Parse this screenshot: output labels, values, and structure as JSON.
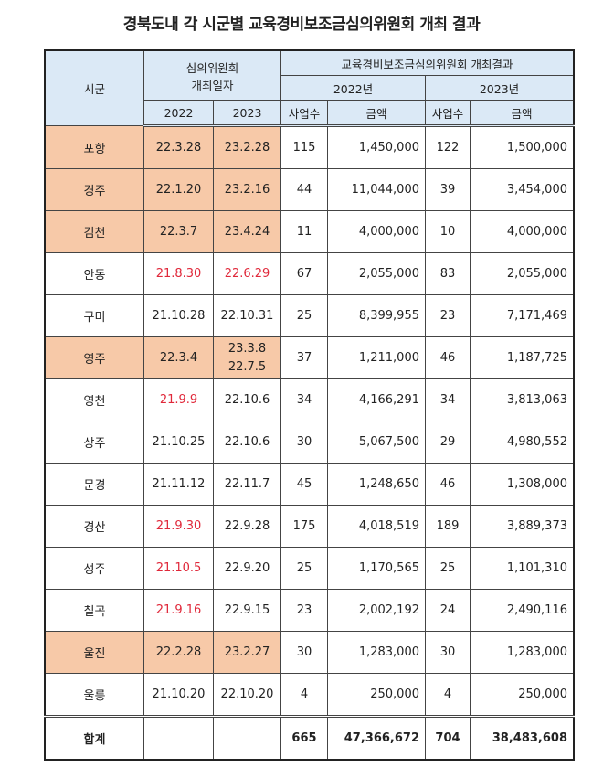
{
  "title": "경북도내 각 시군별 교육경비보조금심의위원회 개최 결과",
  "header": {
    "region": "시군",
    "meeting_date_line1": "심의위원회",
    "meeting_date_line2": "개최일자",
    "result": "교육경비보조금심의위원회 개최결과",
    "year2022": "2022년",
    "year2023": "2023년",
    "d2022": "2022",
    "d2023": "2023",
    "count": "사업수",
    "amount": "금액"
  },
  "colors": {
    "highlight": "#f7c9a8",
    "header": "#dbe9f6",
    "red_date": "#e0283a"
  },
  "rows": [
    {
      "region": "포항",
      "d2022": "22.3.28",
      "d2023": "23.2.28",
      "c2022": "115",
      "a2022": "1,450,000",
      "c2023": "122",
      "a2023": "1,500,000",
      "highlight": true
    },
    {
      "region": "경주",
      "d2022": "22.1.20",
      "d2023": "23.2.16",
      "c2022": "44",
      "a2022": "11,044,000",
      "c2023": "39",
      "a2023": "3,454,000",
      "highlight": true
    },
    {
      "region": "김천",
      "d2022": "22.3.7",
      "d2023": "23.4.24",
      "c2022": "11",
      "a2022": "4,000,000",
      "c2023": "10",
      "a2023": "4,000,000",
      "highlight": true
    },
    {
      "region": "안동",
      "d2022": "21.8.30",
      "d2023": "22.6.29",
      "c2022": "67",
      "a2022": "2,055,000",
      "c2023": "83",
      "a2023": "2,055,000",
      "red2022": true,
      "red2023": true
    },
    {
      "region": "구미",
      "d2022": "21.10.28",
      "d2023": "22.10.31",
      "c2022": "25",
      "a2022": "8,399,955",
      "c2023": "23",
      "a2023": "7,171,469"
    },
    {
      "region": "영주",
      "d2022": "22.3.4",
      "d2023": "23.3.8",
      "d2023b": "22.7.5",
      "c2022": "37",
      "a2022": "1,211,000",
      "c2023": "46",
      "a2023": "1,187,725",
      "highlight": true
    },
    {
      "region": "영천",
      "d2022": "21.9.9",
      "d2023": "22.10.6",
      "c2022": "34",
      "a2022": "4,166,291",
      "c2023": "34",
      "a2023": "3,813,063",
      "red2022": true
    },
    {
      "region": "상주",
      "d2022": "21.10.25",
      "d2023": "22.10.6",
      "c2022": "30",
      "a2022": "5,067,500",
      "c2023": "29",
      "a2023": "4,980,552"
    },
    {
      "region": "문경",
      "d2022": "21.11.12",
      "d2023": "22.11.7",
      "c2022": "45",
      "a2022": "1,248,650",
      "c2023": "46",
      "a2023": "1,308,000"
    },
    {
      "region": "경산",
      "d2022": "21.9.30",
      "d2023": "22.9.28",
      "c2022": "175",
      "a2022": "4,018,519",
      "c2023": "189",
      "a2023": "3,889,373",
      "red2022": true
    },
    {
      "region": "성주",
      "d2022": "21.10.5",
      "d2023": "22.9.20",
      "c2022": "25",
      "a2022": "1,170,565",
      "c2023": "25",
      "a2023": "1,101,310",
      "red2022": true
    },
    {
      "region": "칠곡",
      "d2022": "21.9.16",
      "d2023": "22.9.15",
      "c2022": "23",
      "a2022": "2,002,192",
      "c2023": "24",
      "a2023": "2,490,116",
      "red2022": true
    },
    {
      "region": "울진",
      "d2022": "22.2.28",
      "d2023": "23.2.27",
      "c2022": "30",
      "a2022": "1,283,000",
      "c2023": "30",
      "a2023": "1,283,000",
      "highlight": true
    },
    {
      "region": "울릉",
      "d2022": "21.10.20",
      "d2023": "22.10.20",
      "c2022": "4",
      "a2022": "250,000",
      "c2023": "4",
      "a2023": "250,000"
    }
  ],
  "total": {
    "label": "합계",
    "c2022": "665",
    "a2022": "47,366,672",
    "c2023": "704",
    "a2023": "38,483,608"
  }
}
